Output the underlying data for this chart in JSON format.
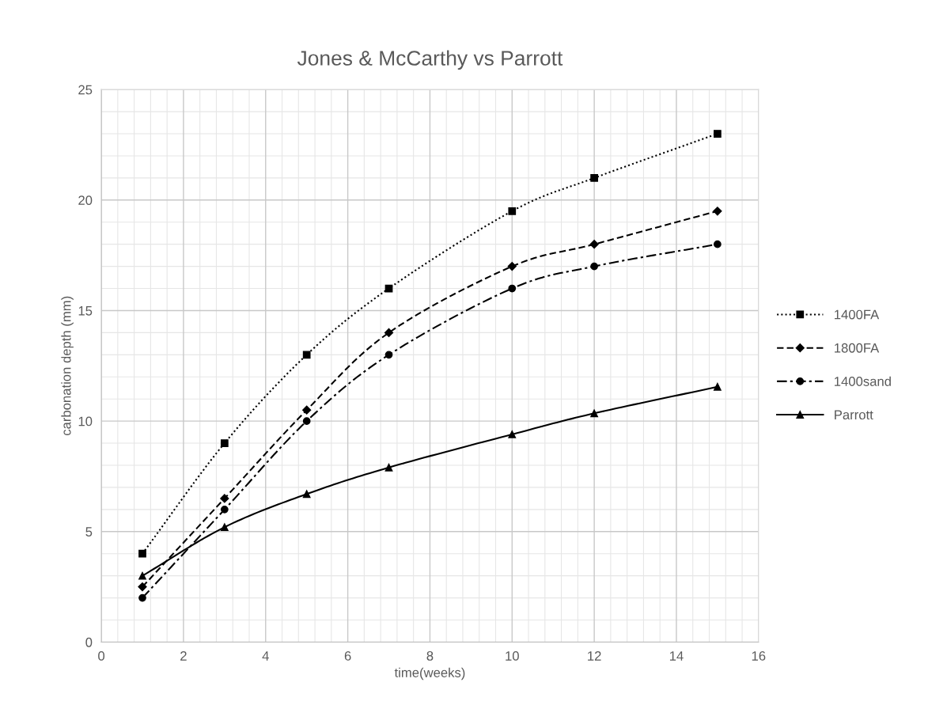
{
  "chart_data": {
    "type": "line",
    "title": "Jones & McCarthy vs Parrott",
    "xlabel": "time(weeks)",
    "ylabel": "carbonation depth (mm)",
    "x": [
      1,
      3,
      5,
      7,
      10,
      12,
      15
    ],
    "series": [
      {
        "name": "1400FA",
        "color": "#000000",
        "marker": "square",
        "line_style": "dotted",
        "values": [
          4,
          9,
          13,
          16,
          19.5,
          21,
          23
        ]
      },
      {
        "name": "1800FA",
        "color": "#000000",
        "marker": "diamond",
        "line_style": "dashed",
        "values": [
          2.5,
          6.5,
          10.5,
          14,
          17,
          18,
          19.5
        ]
      },
      {
        "name": "1400sand",
        "color": "#000000",
        "marker": "circle",
        "line_style": "dashdot",
        "values": [
          2,
          6,
          10,
          13,
          16,
          17,
          18
        ]
      },
      {
        "name": "Parrott",
        "color": "#000000",
        "marker": "triangle",
        "line_style": "solid",
        "values": [
          3,
          5.2,
          6.7,
          7.9,
          9.4,
          10.35,
          11.55
        ]
      }
    ],
    "xlim": [
      0,
      16
    ],
    "xticks": [
      0,
      2,
      4,
      6,
      8,
      10,
      12,
      14,
      16
    ],
    "ylim": [
      0,
      25
    ],
    "yticks": [
      0,
      5,
      10,
      15,
      20,
      25
    ],
    "grid": true,
    "legend": "right"
  }
}
